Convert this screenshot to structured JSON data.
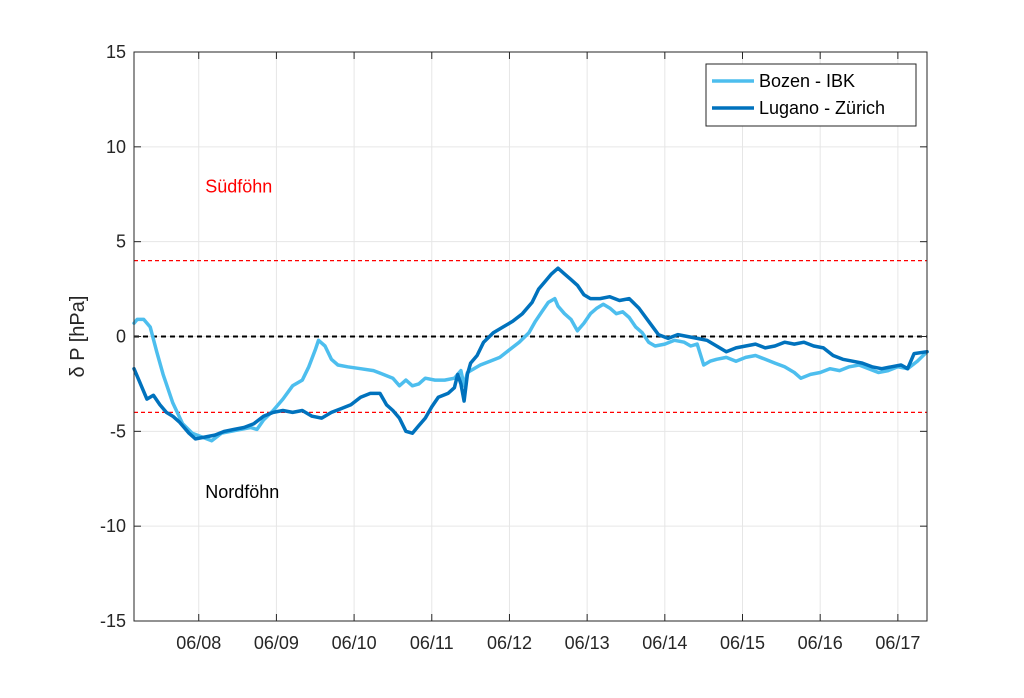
{
  "chart_data": {
    "type": "line",
    "title": "",
    "xlabel": "",
    "ylabel": "δ P [hPa]",
    "ylim": [
      -15,
      15
    ],
    "yticks": [
      -15,
      -10,
      -5,
      0,
      5,
      10,
      15
    ],
    "xlim": [
      "06/07 04:00",
      "06/17 09:00"
    ],
    "xticks": [
      "06/08",
      "06/09",
      "06/10",
      "06/11",
      "06/12",
      "06/13",
      "06/14",
      "06/15",
      "06/16",
      "06/17"
    ],
    "grid": true,
    "legend_position": "top-right",
    "reference_lines": [
      {
        "y": 4,
        "color": "#ff0000",
        "style": "dashed"
      },
      {
        "y": 0,
        "color": "#000000",
        "style": "dashed"
      },
      {
        "y": -4,
        "color": "#ff0000",
        "style": "dashed"
      }
    ],
    "annotations": [
      {
        "text": "Südföhn",
        "x": "06/08 02:00",
        "y": 7.9,
        "color": "#ff0000"
      },
      {
        "text": "Nordföhn",
        "x": "06/08 02:00",
        "y": -8.2,
        "color": "#000000"
      }
    ],
    "series": [
      {
        "name": "Bozen - IBK",
        "color": "#4dbeee",
        "points": [
          [
            "06/07 04:00",
            0.7
          ],
          [
            "06/07 05:00",
            0.9
          ],
          [
            "06/07 07:00",
            0.9
          ],
          [
            "06/07 09:00",
            0.5
          ],
          [
            "06/07 11:00",
            -0.8
          ],
          [
            "06/07 13:00",
            -2.0
          ],
          [
            "06/07 16:00",
            -3.5
          ],
          [
            "06/07 19:00",
            -4.6
          ],
          [
            "06/07 22:00",
            -5.1
          ],
          [
            "06/08 01:00",
            -5.3
          ],
          [
            "06/08 04:00",
            -5.5
          ],
          [
            "06/08 07:00",
            -5.1
          ],
          [
            "06/08 10:00",
            -5.0
          ],
          [
            "06/08 13:00",
            -4.9
          ],
          [
            "06/08 16:00",
            -4.8
          ],
          [
            "06/08 18:00",
            -4.9
          ],
          [
            "06/08 20:00",
            -4.4
          ],
          [
            "06/08 23:00",
            -3.9
          ],
          [
            "06/09 02:00",
            -3.3
          ],
          [
            "06/09 05:00",
            -2.6
          ],
          [
            "06/09 08:00",
            -2.3
          ],
          [
            "06/09 10:00",
            -1.6
          ],
          [
            "06/09 12:00",
            -0.7
          ],
          [
            "06/09 13:00",
            -0.2
          ],
          [
            "06/09 15:00",
            -0.5
          ],
          [
            "06/09 17:00",
            -1.2
          ],
          [
            "06/09 19:00",
            -1.5
          ],
          [
            "06/09 22:00",
            -1.6
          ],
          [
            "06/10 02:00",
            -1.7
          ],
          [
            "06/10 06:00",
            -1.8
          ],
          [
            "06/10 09:00",
            -2.0
          ],
          [
            "06/10 12:00",
            -2.2
          ],
          [
            "06/10 14:00",
            -2.6
          ],
          [
            "06/10 16:00",
            -2.3
          ],
          [
            "06/10 18:00",
            -2.6
          ],
          [
            "06/10 20:00",
            -2.5
          ],
          [
            "06/10 22:00",
            -2.2
          ],
          [
            "06/11 01:00",
            -2.3
          ],
          [
            "06/11 04:00",
            -2.3
          ],
          [
            "06/11 07:00",
            -2.2
          ],
          [
            "06/11 09:00",
            -1.8
          ],
          [
            "06/11 10:00",
            -2.6
          ],
          [
            "06/11 11:00",
            -1.9
          ],
          [
            "06/11 13:00",
            -1.7
          ],
          [
            "06/11 15:00",
            -1.5
          ],
          [
            "06/11 18:00",
            -1.3
          ],
          [
            "06/11 21:00",
            -1.1
          ],
          [
            "06/12 00:00",
            -0.7
          ],
          [
            "06/12 03:00",
            -0.3
          ],
          [
            "06/12 06:00",
            0.2
          ],
          [
            "06/12 08:00",
            0.8
          ],
          [
            "06/12 10:00",
            1.3
          ],
          [
            "06/12 12:00",
            1.8
          ],
          [
            "06/12 14:00",
            2.0
          ],
          [
            "06/12 15:00",
            1.6
          ],
          [
            "06/12 17:00",
            1.2
          ],
          [
            "06/12 19:00",
            0.9
          ],
          [
            "06/12 21:00",
            0.3
          ],
          [
            "06/12 23:00",
            0.7
          ],
          [
            "06/13 01:00",
            1.2
          ],
          [
            "06/13 03:00",
            1.5
          ],
          [
            "06/13 05:00",
            1.7
          ],
          [
            "06/13 07:00",
            1.5
          ],
          [
            "06/13 09:00",
            1.2
          ],
          [
            "06/13 11:00",
            1.3
          ],
          [
            "06/13 13:00",
            1.0
          ],
          [
            "06/13 15:00",
            0.5
          ],
          [
            "06/13 17:00",
            0.2
          ],
          [
            "06/13 19:00",
            -0.3
          ],
          [
            "06/13 21:00",
            -0.5
          ],
          [
            "06/14 00:00",
            -0.4
          ],
          [
            "06/14 03:00",
            -0.2
          ],
          [
            "06/14 06:00",
            -0.3
          ],
          [
            "06/14 08:00",
            -0.5
          ],
          [
            "06/14 10:00",
            -0.4
          ],
          [
            "06/14 12:00",
            -1.5
          ],
          [
            "06/14 14:00",
            -1.3
          ],
          [
            "06/14 16:00",
            -1.2
          ],
          [
            "06/14 19:00",
            -1.1
          ],
          [
            "06/14 22:00",
            -1.3
          ],
          [
            "06/15 01:00",
            -1.1
          ],
          [
            "06/15 04:00",
            -1.0
          ],
          [
            "06/15 07:00",
            -1.2
          ],
          [
            "06/15 10:00",
            -1.4
          ],
          [
            "06/15 13:00",
            -1.6
          ],
          [
            "06/15 16:00",
            -1.9
          ],
          [
            "06/15 18:00",
            -2.2
          ],
          [
            "06/15 21:00",
            -2.0
          ],
          [
            "06/16 00:00",
            -1.9
          ],
          [
            "06/16 03:00",
            -1.7
          ],
          [
            "06/16 06:00",
            -1.8
          ],
          [
            "06/16 09:00",
            -1.6
          ],
          [
            "06/16 12:00",
            -1.5
          ],
          [
            "06/16 15:00",
            -1.7
          ],
          [
            "06/16 18:00",
            -1.9
          ],
          [
            "06/16 21:00",
            -1.8
          ],
          [
            "06/17 00:00",
            -1.6
          ],
          [
            "06/17 03:00",
            -1.7
          ],
          [
            "06/17 06:00",
            -1.3
          ],
          [
            "06/17 09:00",
            -0.8
          ]
        ]
      },
      {
        "name": "Lugano - Zürich",
        "color": "#0072bd",
        "points": [
          [
            "06/07 04:00",
            -1.7
          ],
          [
            "06/07 06:00",
            -2.5
          ],
          [
            "06/07 08:00",
            -3.3
          ],
          [
            "06/07 10:00",
            -3.1
          ],
          [
            "06/07 12:00",
            -3.6
          ],
          [
            "06/07 14:00",
            -4.0
          ],
          [
            "06/07 16:00",
            -4.2
          ],
          [
            "06/07 18:00",
            -4.5
          ],
          [
            "06/07 21:00",
            -5.1
          ],
          [
            "06/07 23:00",
            -5.4
          ],
          [
            "06/08 02:00",
            -5.3
          ],
          [
            "06/08 05:00",
            -5.2
          ],
          [
            "06/08 08:00",
            -5.0
          ],
          [
            "06/08 11:00",
            -4.9
          ],
          [
            "06/08 14:00",
            -4.8
          ],
          [
            "06/08 17:00",
            -4.6
          ],
          [
            "06/08 20:00",
            -4.2
          ],
          [
            "06/08 23:00",
            -4.0
          ],
          [
            "06/09 02:00",
            -3.9
          ],
          [
            "06/09 05:00",
            -4.0
          ],
          [
            "06/09 08:00",
            -3.9
          ],
          [
            "06/09 11:00",
            -4.2
          ],
          [
            "06/09 14:00",
            -4.3
          ],
          [
            "06/09 17:00",
            -4.0
          ],
          [
            "06/09 20:00",
            -3.8
          ],
          [
            "06/09 23:00",
            -3.6
          ],
          [
            "06/10 02:00",
            -3.2
          ],
          [
            "06/10 05:00",
            -3.0
          ],
          [
            "06/10 08:00",
            -3.0
          ],
          [
            "06/10 10:00",
            -3.6
          ],
          [
            "06/10 12:00",
            -3.9
          ],
          [
            "06/10 14:00",
            -4.3
          ],
          [
            "06/10 16:00",
            -5.0
          ],
          [
            "06/10 18:00",
            -5.1
          ],
          [
            "06/10 20:00",
            -4.7
          ],
          [
            "06/10 22:00",
            -4.3
          ],
          [
            "06/11 00:00",
            -3.7
          ],
          [
            "06/11 02:00",
            -3.2
          ],
          [
            "06/11 05:00",
            -3.0
          ],
          [
            "06/11 07:00",
            -2.7
          ],
          [
            "06/11 08:00",
            -2.0
          ],
          [
            "06/11 09:00",
            -2.5
          ],
          [
            "06/11 10:00",
            -3.4
          ],
          [
            "06/11 11:00",
            -2.0
          ],
          [
            "06/11 12:00",
            -1.4
          ],
          [
            "06/11 14:00",
            -1.0
          ],
          [
            "06/11 16:00",
            -0.3
          ],
          [
            "06/11 19:00",
            0.2
          ],
          [
            "06/11 22:00",
            0.5
          ],
          [
            "06/12 01:00",
            0.8
          ],
          [
            "06/12 04:00",
            1.2
          ],
          [
            "06/12 07:00",
            1.8
          ],
          [
            "06/12 09:00",
            2.5
          ],
          [
            "06/12 11:00",
            2.9
          ],
          [
            "06/12 13:00",
            3.3
          ],
          [
            "06/12 15:00",
            3.6
          ],
          [
            "06/12 17:00",
            3.3
          ],
          [
            "06/12 19:00",
            3.0
          ],
          [
            "06/12 21:00",
            2.7
          ],
          [
            "06/12 23:00",
            2.2
          ],
          [
            "06/13 01:00",
            2.0
          ],
          [
            "06/13 04:00",
            2.0
          ],
          [
            "06/13 07:00",
            2.1
          ],
          [
            "06/13 10:00",
            1.9
          ],
          [
            "06/13 13:00",
            2.0
          ],
          [
            "06/13 16:00",
            1.5
          ],
          [
            "06/13 19:00",
            0.8
          ],
          [
            "06/13 22:00",
            0.1
          ],
          [
            "06/14 01:00",
            -0.1
          ],
          [
            "06/14 04:00",
            0.1
          ],
          [
            "06/14 07:00",
            0.0
          ],
          [
            "06/14 10:00",
            -0.1
          ],
          [
            "06/14 13:00",
            -0.2
          ],
          [
            "06/14 16:00",
            -0.5
          ],
          [
            "06/14 19:00",
            -0.8
          ],
          [
            "06/14 22:00",
            -0.6
          ],
          [
            "06/15 01:00",
            -0.5
          ],
          [
            "06/15 04:00",
            -0.4
          ],
          [
            "06/15 07:00",
            -0.6
          ],
          [
            "06/15 10:00",
            -0.5
          ],
          [
            "06/15 13:00",
            -0.3
          ],
          [
            "06/15 16:00",
            -0.4
          ],
          [
            "06/15 19:00",
            -0.3
          ],
          [
            "06/15 22:00",
            -0.5
          ],
          [
            "06/16 01:00",
            -0.6
          ],
          [
            "06/16 04:00",
            -1.0
          ],
          [
            "06/16 07:00",
            -1.2
          ],
          [
            "06/16 10:00",
            -1.3
          ],
          [
            "06/16 13:00",
            -1.4
          ],
          [
            "06/16 16:00",
            -1.6
          ],
          [
            "06/16 19:00",
            -1.7
          ],
          [
            "06/16 22:00",
            -1.6
          ],
          [
            "06/17 01:00",
            -1.5
          ],
          [
            "06/17 03:00",
            -1.7
          ],
          [
            "06/17 05:00",
            -0.9
          ],
          [
            "06/17 09:00",
            -0.8
          ]
        ]
      }
    ]
  }
}
